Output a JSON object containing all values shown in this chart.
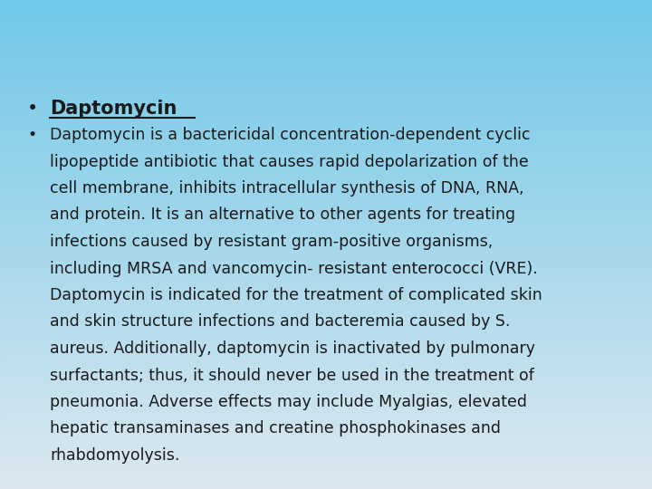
{
  "background_top": "#70c8e8",
  "background_bottom": "#dce8f0",
  "swoosh_color1": "#a8daf0",
  "swoosh_color2": "#7ec8e8",
  "swoosh_color3": "#b8e4f8",
  "title_bullet": "Daptomycin",
  "body_lines": [
    "Daptomycin is a bactericidal concentration-dependent cyclic",
    "lipopeptide antibiotic that causes rapid depolarization of the",
    "cell membrane, inhibits intracellular synthesis of DNA, RNA,",
    "and protein. It is an alternative to other agents for treating",
    "infections caused by resistant gram-positive organisms,",
    "including MRSA and vancomycin- resistant enterococci (VRE).",
    "Daptomycin is indicated for the treatment of complicated skin",
    "and skin structure infections and bacteremia caused by S.",
    "aureus. Additionally, daptomycin is inactivated by pulmonary",
    "surfactants; thus, it should never be used in the treatment of",
    "pneumonia. Adverse effects may include Myalgias, elevated",
    "hepatic transaminases and creatine phosphokinases and",
    "rhabdomyolysis."
  ],
  "text_color": "#1a1a1a",
  "font_size_title": 15,
  "font_size_body": 12.5,
  "bullet_char": "•",
  "fig_width": 7.2,
  "fig_height": 5.4,
  "dpi": 100
}
